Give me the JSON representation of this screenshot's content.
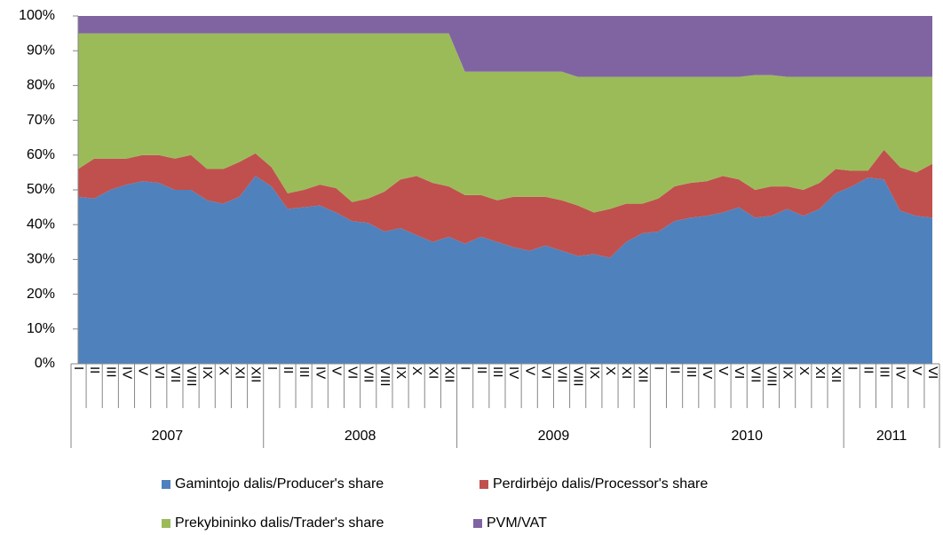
{
  "chart_data": {
    "type": "stacked_area_100",
    "categories": [
      "I",
      "II",
      "III",
      "IV",
      "V",
      "VI",
      "VII",
      "VIII",
      "IX",
      "X",
      "XI",
      "XII",
      "I",
      "II",
      "III",
      "IV",
      "V",
      "VI",
      "VII",
      "VIII",
      "IX",
      "X",
      "XI",
      "XII",
      "I",
      "II",
      "III",
      "IV",
      "V",
      "VI",
      "VII",
      "VIII",
      "IX",
      "X",
      "XI",
      "XII",
      "I",
      "II",
      "III",
      "IV",
      "V",
      "VI",
      "VII",
      "VIII",
      "IX",
      "X",
      "XI",
      "XII",
      "I",
      "II",
      "III",
      "IV",
      "V",
      "VI"
    ],
    "x_groups": [
      {
        "label": "2007",
        "span": 12
      },
      {
        "label": "2008",
        "span": 12
      },
      {
        "label": "2009",
        "span": 12
      },
      {
        "label": "2010",
        "span": 12
      },
      {
        "label": "2011",
        "span": 6
      }
    ],
    "series": [
      {
        "name": "Gamintojo dalis/Producer's share",
        "color": "#4f81bd",
        "values": [
          48,
          47.5,
          50,
          51.5,
          52.5,
          52,
          50,
          50,
          47,
          46,
          48,
          54,
          51,
          44.5,
          45,
          45.5,
          43.5,
          41,
          40.5,
          38,
          39,
          37,
          35,
          36.5,
          34.5,
          36.5,
          35,
          33.5,
          32.5,
          34,
          32.5,
          31,
          31.5,
          30.5,
          35,
          37.5,
          38,
          41,
          42,
          42.5,
          43.5,
          45,
          42,
          42.5,
          44.5,
          42.5,
          44.5,
          49,
          51,
          53.5,
          53,
          44,
          42.5,
          42
        ]
      },
      {
        "name": "Perdirbėjo dalis/Processor's share",
        "color": "#c0504d",
        "values": [
          8,
          11.5,
          9,
          7.5,
          7.5,
          8,
          9,
          10,
          9,
          10,
          10,
          6.5,
          5.5,
          4.5,
          5,
          6,
          7,
          5.5,
          7,
          11.5,
          14,
          17,
          17,
          14.5,
          14,
          12,
          12,
          14.5,
          15.5,
          14,
          14.5,
          14.5,
          12,
          14,
          11,
          8.5,
          9.5,
          10,
          10,
          10,
          10.5,
          8,
          8,
          8.5,
          6.5,
          7.5,
          7.5,
          7,
          4.5,
          2,
          8.5,
          12.5,
          12.5,
          15.5
        ]
      },
      {
        "name": "Prekybininko dalis/Trader's share",
        "color": "#9bbb59",
        "values": [
          39,
          36,
          36,
          36,
          35,
          35,
          36,
          35,
          39,
          39,
          37,
          34.5,
          38.5,
          46,
          45,
          43.5,
          44.5,
          48.5,
          47.5,
          45.5,
          42,
          41,
          43,
          44,
          35.5,
          35.5,
          37,
          36,
          36,
          36,
          37,
          37,
          39,
          38,
          36.5,
          36.5,
          35,
          31.5,
          30.5,
          30,
          28.5,
          29.5,
          33,
          32,
          31.5,
          32.5,
          30.5,
          26.5,
          27,
          27,
          21,
          26,
          27.5,
          25
        ]
      },
      {
        "name": "PVM/VAT",
        "color": "#8064a2",
        "values": [
          5,
          5,
          5,
          5,
          5,
          5,
          5,
          5,
          5,
          5,
          5,
          5,
          5,
          5,
          5,
          5,
          5,
          5,
          5,
          5,
          5,
          5,
          5,
          5,
          16,
          16,
          16,
          16,
          16,
          16,
          16,
          17.5,
          17.5,
          17.5,
          17.5,
          17.5,
          17.5,
          17.5,
          17.5,
          17.5,
          17.5,
          17.5,
          17,
          17,
          17.5,
          17.5,
          17.5,
          17.5,
          17.5,
          17.5,
          17.5,
          17.5,
          17.5,
          17.5
        ]
      }
    ],
    "ylim": [
      0,
      100
    ],
    "yticks": [
      {
        "value": 0,
        "label": "0%"
      },
      {
        "value": 10,
        "label": "10%"
      },
      {
        "value": 20,
        "label": "20%"
      },
      {
        "value": 30,
        "label": "30%"
      },
      {
        "value": 40,
        "label": "40%"
      },
      {
        "value": 50,
        "label": "50%"
      },
      {
        "value": 60,
        "label": "60%"
      },
      {
        "value": 70,
        "label": "70%"
      },
      {
        "value": 80,
        "label": "80%"
      },
      {
        "value": 90,
        "label": "90%"
      },
      {
        "value": 100,
        "label": "100%"
      }
    ],
    "legend": "bottom"
  }
}
